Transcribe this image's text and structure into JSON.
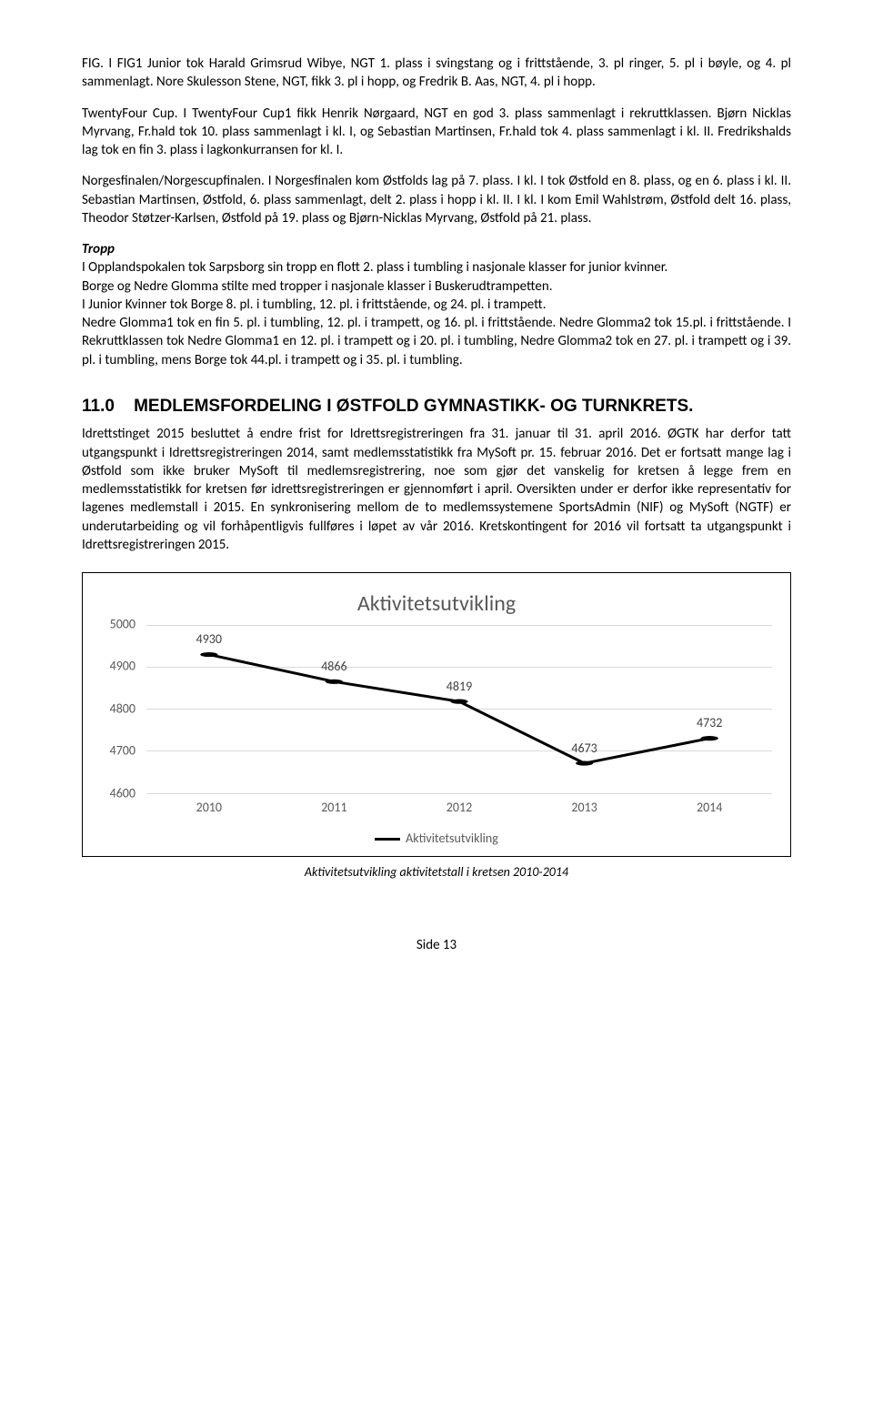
{
  "paragraphs": {
    "p1": "FIG. I FIG1 Junior tok Harald Grimsrud Wibye, NGT 1. plass i svingstang og i frittstående, 3. pl ringer, 5. pl i bøyle, og 4. pl sammenlagt. Nore Skulesson Stene, NGT, fikk 3. pl i hopp, og Fredrik B. Aas, NGT, 4. pl i hopp.",
    "p2": "TwentyFour Cup. I TwentyFour Cup1 fikk Henrik Nørgaard, NGT en god 3. plass sammenlagt i rekruttklassen. Bjørn Nicklas Myrvang, Fr.hald tok 10. plass sammenlagt i kl. I, og Sebastian Martinsen, Fr.hald tok 4. plass sammenlagt i kl. II. Fredrikshalds lag tok en fin 3. plass i lagkonkurransen for kl. I.",
    "p3": "Norgesfinalen/Norgescupfinalen. I Norgesfinalen kom Østfolds lag på 7. plass. I kl. I tok Østfold en 8. plass, og en 6. plass i kl. II. Sebastian Martinsen, Østfold, 6. plass sammenlagt, delt 2. plass i hopp i kl. II. I kl. I kom Emil Wahlstrøm, Østfold delt 16. plass, Theodor Støtzer-Karlsen, Østfold på 19. plass og Bjørn-Nicklas Myrvang, Østfold på 21. plass.",
    "tropp_label": "Tropp",
    "p4": "I Opplandspokalen tok Sarpsborg sin tropp en flott 2. plass i tumbling i nasjonale klasser for junior kvinner.\nBorge og Nedre Glomma stilte med tropper i nasjonale klasser i Buskerudtrampetten.\nI Junior Kvinner tok Borge 8. pl. i tumbling, 12. pl. i frittstående, og 24. pl. i trampett.\nNedre Glomma1 tok en fin 5. pl. i tumbling, 12. pl. i trampett, og 16. pl. i frittstående. Nedre Glomma2 tok 15.pl. i frittstående. I Rekruttklassen tok Nedre Glomma1 en 12. pl. i trampett og i 20. pl. i tumbling, Nedre Glomma2 tok en 27. pl. i trampett og i 39. pl. i tumbling, mens Borge tok 44.pl. i trampett og i 35. pl. i tumbling.",
    "heading_num": "11.0",
    "heading_text": "MEDLEMSFORDELING I ØSTFOLD GYMNASTIKK- OG TURNKRETS.",
    "p5": "Idrettstinget 2015 besluttet å endre frist for Idrettsregistreringen fra 31. januar til 31. april 2016. ØGTK har derfor tatt utgangspunkt i Idrettsregistreringen 2014, samt medlemsstatistikk fra MySoft pr. 15. februar 2016. Det er fortsatt mange lag i Østfold som ikke bruker MySoft til medlemsregistrering, noe som gjør det vanskelig for kretsen å legge frem en medlemsstatistikk for kretsen før idrettsregistreringen er gjennomført i april. Oversikten under er derfor ikke representativ for lagenes medlemstall i 2015. En synkronisering mellom de to medlemssystemene SportsAdmin (NIF) og MySoft (NGTF) er underutarbeiding og vil forhåpentligvis fullføres i løpet av vår 2016. Kretskontingent for 2016 vil fortsatt ta utgangspunkt i Idrettsregistreringen 2015."
  },
  "chart": {
    "type": "line",
    "title": "Aktivitetsutvikling",
    "x_categories": [
      "2010",
      "2011",
      "2012",
      "2013",
      "2014"
    ],
    "values": [
      4930,
      4866,
      4819,
      4673,
      4732
    ],
    "ylim": [
      4600,
      5000
    ],
    "yticks": [
      4600,
      4700,
      4800,
      4900,
      5000
    ],
    "line_color": "#000000",
    "line_width": 3,
    "marker_size": 5,
    "marker_color": "#000000",
    "grid_color": "#d9d9d9",
    "background_color": "#ffffff",
    "title_fontsize": 24,
    "axis_font_color": "#595959",
    "legend_label": "Aktivitetsutvikling",
    "caption": "Aktivitetsutvikling aktivitetstall i kretsen 2010-2014"
  },
  "footer": "Side 13"
}
